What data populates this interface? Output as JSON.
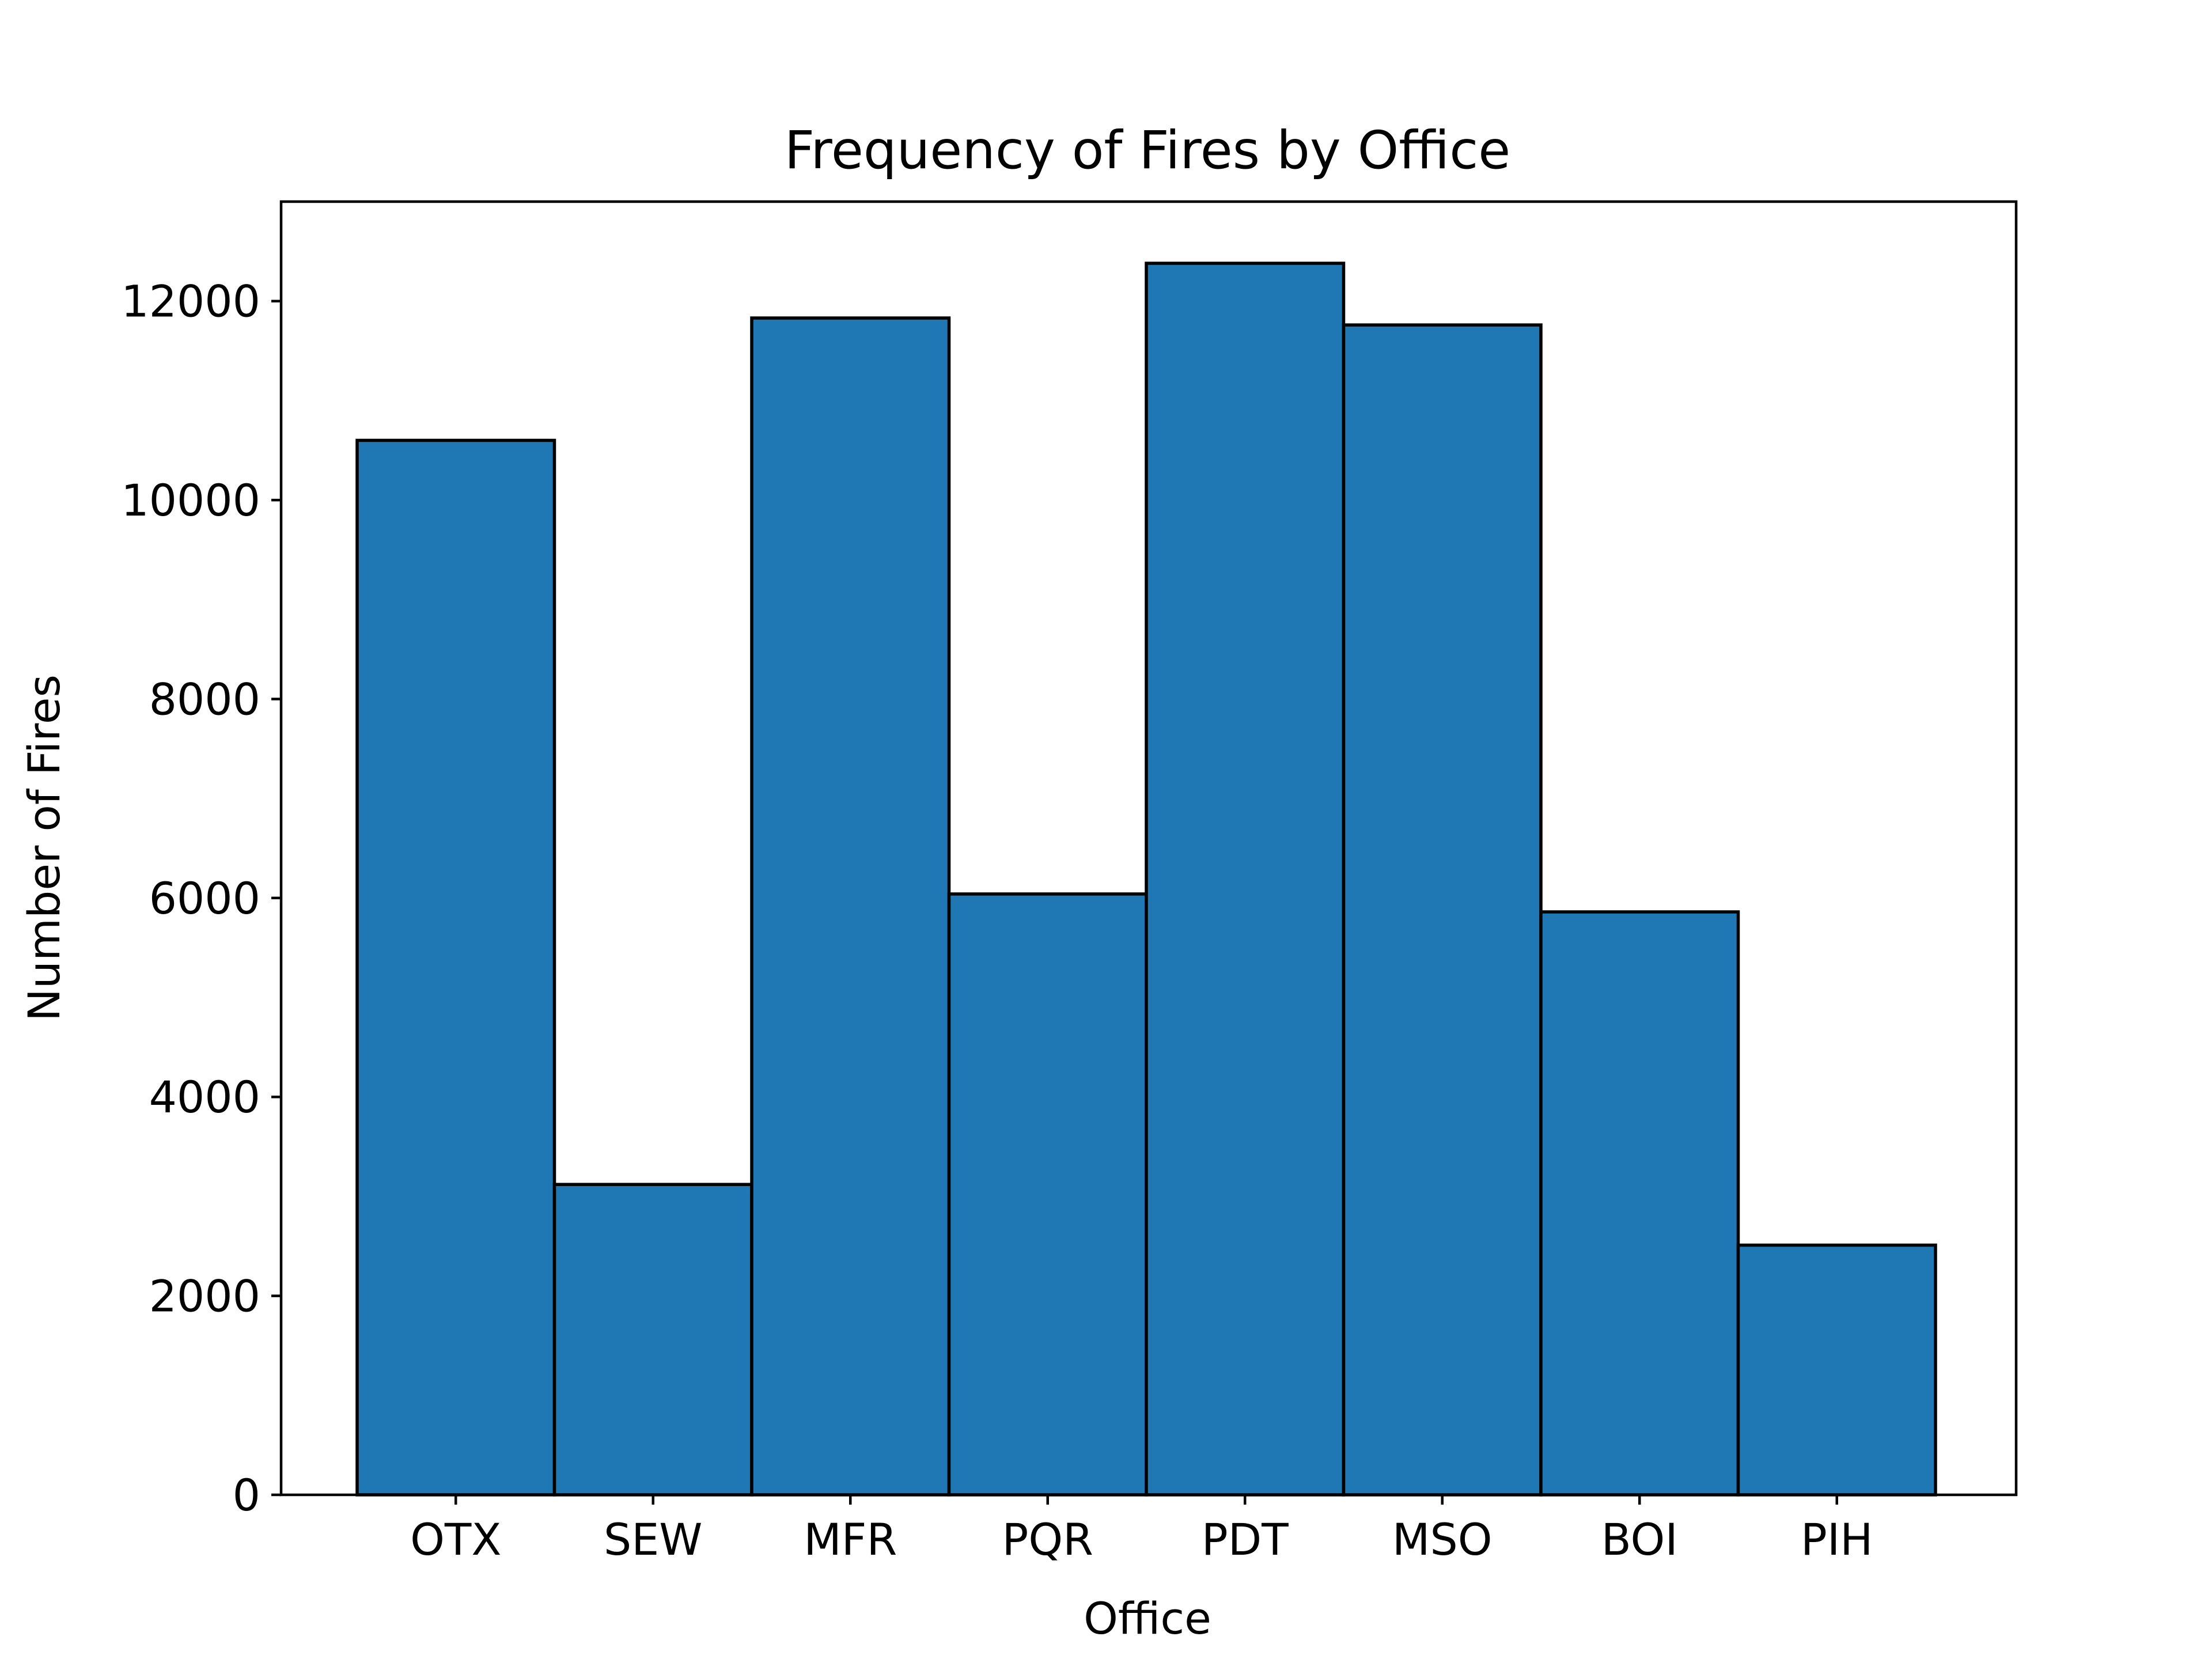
{
  "chart_data": {
    "type": "bar",
    "title": "Frequency of Fires by Office",
    "xlabel": "Office",
    "ylabel": "Number of Fires",
    "categories": [
      "OTX",
      "SEW",
      "MFR",
      "PQR",
      "PDT",
      "MSO",
      "BOI",
      "PIH"
    ],
    "values": [
      10600,
      3120,
      11830,
      6040,
      12380,
      11760,
      5860,
      2510
    ],
    "ylim": [
      0,
      13000
    ],
    "yticks": [
      0,
      2000,
      4000,
      6000,
      8000,
      10000,
      12000
    ],
    "ytick_labels": [
      "0",
      "2000",
      "4000",
      "6000",
      "8000",
      "10000",
      "12000"
    ],
    "grid": false,
    "bar_color": "#1f77b4",
    "edge_color": "#000000"
  }
}
